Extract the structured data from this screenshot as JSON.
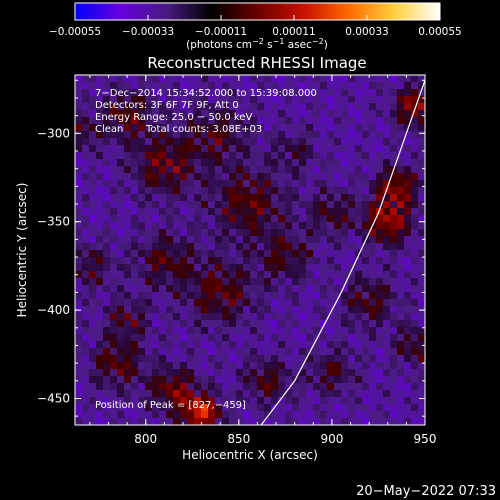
{
  "chart_data": {
    "type": "heatmap",
    "title": "Reconstructed RHESSI Image",
    "xlabel": "Heliocentric X (arcsec)",
    "ylabel": "Heliocentric Y (arcsec)",
    "xlim": [
      762,
      950
    ],
    "ylim": [
      -465,
      -267
    ],
    "x_ticks": [
      800,
      850,
      900,
      950
    ],
    "x_tick_labels": [
      "800",
      "850",
      "900",
      "950"
    ],
    "y_ticks": [
      -300,
      -350,
      -400,
      -450
    ],
    "y_tick_labels": [
      "−300",
      "−350",
      "−400",
      "−450"
    ],
    "colorbar": {
      "range": [
        -0.00055,
        0.00055
      ],
      "ticks": [
        -0.00055,
        -0.00033,
        -0.00011,
        0.00011,
        0.00033,
        0.00055
      ],
      "tick_labels": [
        "−0.00055",
        "−0.00033",
        "−0.00011",
        "0.00011",
        "0.00033",
        "0.00055"
      ],
      "colormap": [
        "#0000ff",
        "#6600dd",
        "#4a1a80",
        "#000000",
        "#6a0000",
        "#c81000",
        "#ff6a00",
        "#ffd040",
        "#ffffff"
      ]
    },
    "annotations": [
      "7−Dec−2014 15:34:52.000 to 15:39:08.000",
      "Detectors: 3F 6F 7F 9F, Att 0",
      "Energy Range: 25.0 − 50.0 keV",
      "Clean",
      "Total counts: 3.08E+03"
    ],
    "peak_label": "Position of Peak = [827,−459]",
    "peak": [
      827,
      -459
    ],
    "limb_curve": [
      [
        862,
        -465
      ],
      [
        880,
        -440
      ],
      [
        905,
        -390
      ],
      [
        925,
        -345
      ],
      [
        940,
        -300
      ],
      [
        951,
        -267
      ]
    ],
    "blobs": [
      {
        "x": 790,
        "y": -290,
        "s": 10,
        "v": 0.5
      },
      {
        "x": 810,
        "y": -318,
        "s": 12,
        "v": 0.55
      },
      {
        "x": 838,
        "y": -300,
        "s": 12,
        "v": 0.42
      },
      {
        "x": 855,
        "y": -340,
        "s": 14,
        "v": 0.52
      },
      {
        "x": 840,
        "y": -390,
        "s": 13,
        "v": 0.5
      },
      {
        "x": 810,
        "y": -372,
        "s": 11,
        "v": 0.45
      },
      {
        "x": 875,
        "y": -370,
        "s": 10,
        "v": 0.42
      },
      {
        "x": 770,
        "y": -375,
        "s": 9,
        "v": 0.38
      },
      {
        "x": 785,
        "y": -430,
        "s": 10,
        "v": 0.5
      },
      {
        "x": 830,
        "y": -458,
        "s": 7,
        "v": 1.0
      },
      {
        "x": 815,
        "y": -445,
        "s": 9,
        "v": 0.6
      },
      {
        "x": 865,
        "y": -440,
        "s": 9,
        "v": 0.45
      },
      {
        "x": 900,
        "y": -345,
        "s": 9,
        "v": 0.4
      },
      {
        "x": 930,
        "y": -350,
        "s": 9,
        "v": 0.75
      },
      {
        "x": 935,
        "y": -330,
        "s": 8,
        "v": 0.65
      },
      {
        "x": 945,
        "y": -285,
        "s": 8,
        "v": 0.72
      },
      {
        "x": 920,
        "y": -395,
        "s": 10,
        "v": 0.45
      },
      {
        "x": 945,
        "y": -420,
        "s": 8,
        "v": 0.45
      },
      {
        "x": 900,
        "y": -435,
        "s": 9,
        "v": 0.4
      },
      {
        "x": 880,
        "y": -310,
        "s": 8,
        "v": 0.32
      },
      {
        "x": 765,
        "y": -300,
        "s": 7,
        "v": 0.4
      },
      {
        "x": 790,
        "y": -405,
        "s": 8,
        "v": 0.42
      }
    ]
  },
  "footer": {
    "timestamp": "20−May−2022 07:33"
  }
}
